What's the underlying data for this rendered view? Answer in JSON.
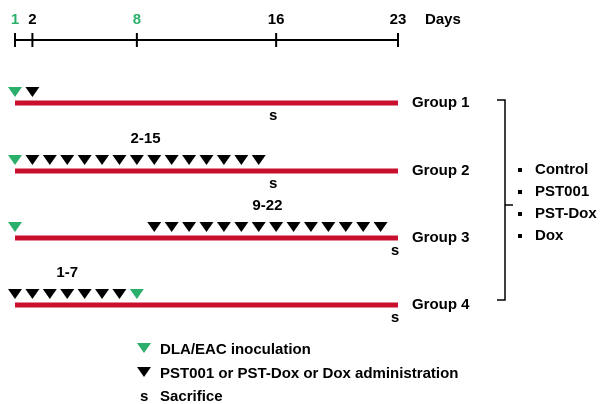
{
  "timeline": {
    "ticks": [
      {
        "value": 1,
        "color": "#2ab06a"
      },
      {
        "value": 2,
        "color": "#000000"
      },
      {
        "value": 8,
        "color": "#2ab06a"
      },
      {
        "value": 16,
        "color": "#000000"
      },
      {
        "value": 23,
        "color": "#000000"
      }
    ],
    "unit": "Days"
  },
  "groups": [
    {
      "label": "Group 1",
      "inoculation_day": 1,
      "dose_days": [
        2,
        2
      ],
      "sacrifice_day": 16,
      "sacrifice": "s"
    },
    {
      "label": "Group 2",
      "inoculation_day": 1,
      "dose_days": [
        2,
        15
      ],
      "range_label": "2-15",
      "sacrifice_day": 16,
      "sacrifice": "s"
    },
    {
      "label": "Group 3",
      "inoculation_day": 1,
      "dose_days": [
        9,
        22
      ],
      "range_label": "9-22",
      "sacrifice_day": 23,
      "sacrifice": "s"
    },
    {
      "label": "Group 4",
      "inoculation_day": 8,
      "dose_days": [
        1,
        7
      ],
      "range_label": "1-7",
      "sacrifice_day": 23,
      "sacrifice": "s"
    }
  ],
  "treatments": [
    "Control",
    "PST001",
    "PST-Dox",
    "Dox"
  ],
  "legend": {
    "inoculation": "DLA/EAC inoculation",
    "administration": "PST001 or PST-Dox or Dox administration",
    "sacrifice_symbol": "s",
    "sacrifice": "Sacrifice"
  }
}
